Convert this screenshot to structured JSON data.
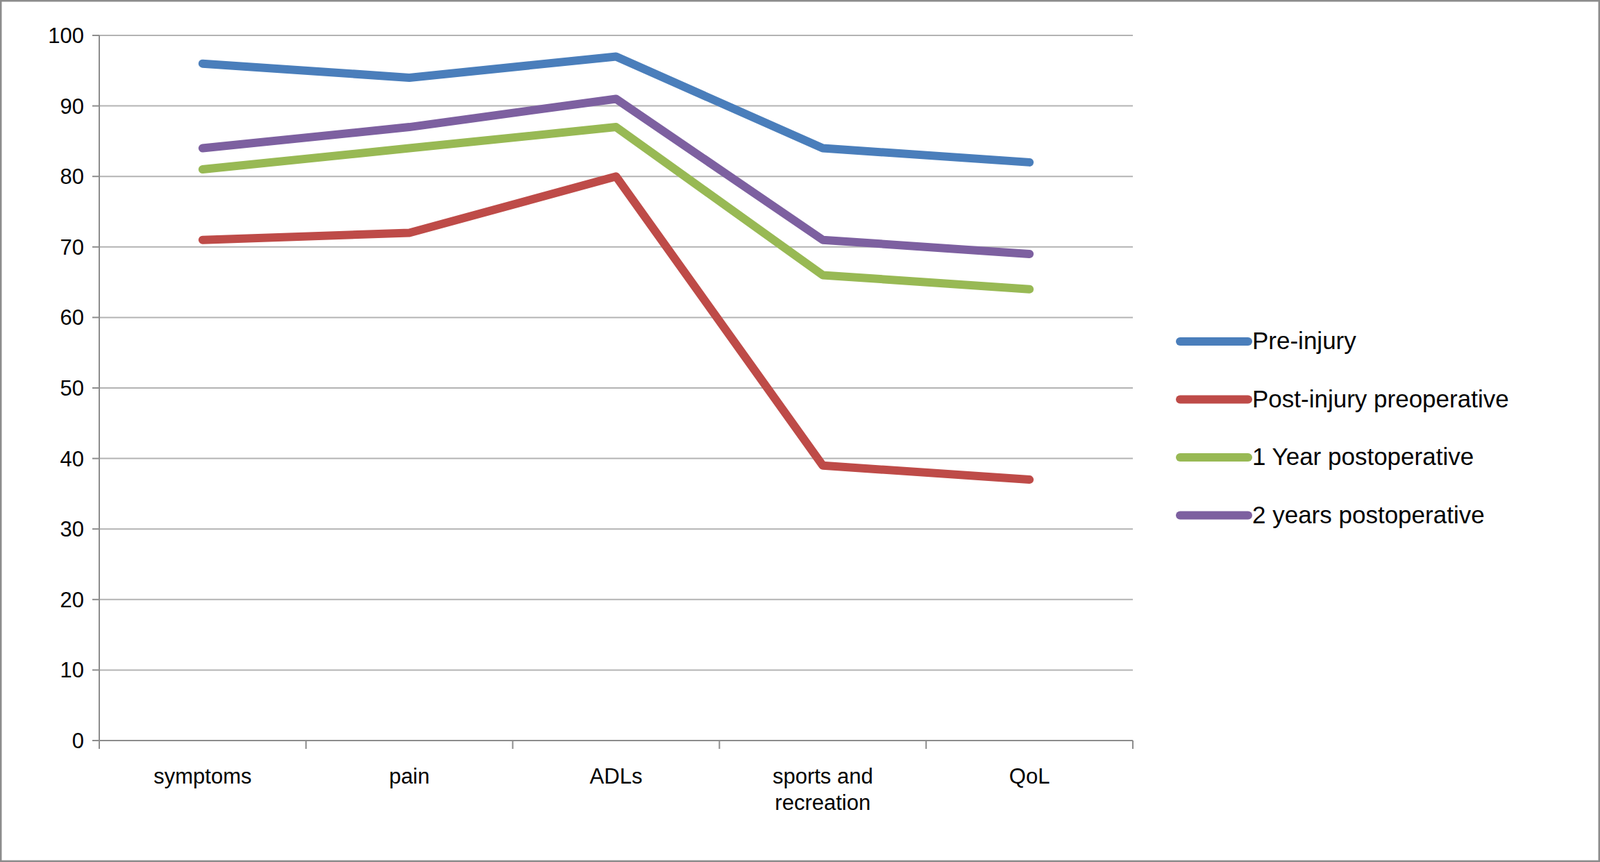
{
  "chart_data": {
    "type": "line",
    "categories": [
      "symptoms",
      "pain",
      "ADLs",
      "sports and recreation",
      "QoL"
    ],
    "series": [
      {
        "name": "Pre-injury",
        "color": "#4a7ebb",
        "values": [
          96,
          94,
          97,
          84,
          82
        ]
      },
      {
        "name": "Post-injury preoperative",
        "color": "#be4b48",
        "values": [
          71,
          72,
          80,
          39,
          37
        ]
      },
      {
        "name": "1 Year postoperative",
        "color": "#98b954",
        "values": [
          81,
          84,
          87,
          66,
          64
        ]
      },
      {
        "name": "2 years postoperative",
        "color": "#7d60a0",
        "values": [
          84,
          87,
          91,
          71,
          69
        ]
      }
    ],
    "ylim": [
      0,
      100
    ],
    "yticks": [
      0,
      10,
      20,
      30,
      40,
      50,
      60,
      70,
      80,
      90,
      100
    ],
    "grid": true,
    "legend": "right"
  }
}
